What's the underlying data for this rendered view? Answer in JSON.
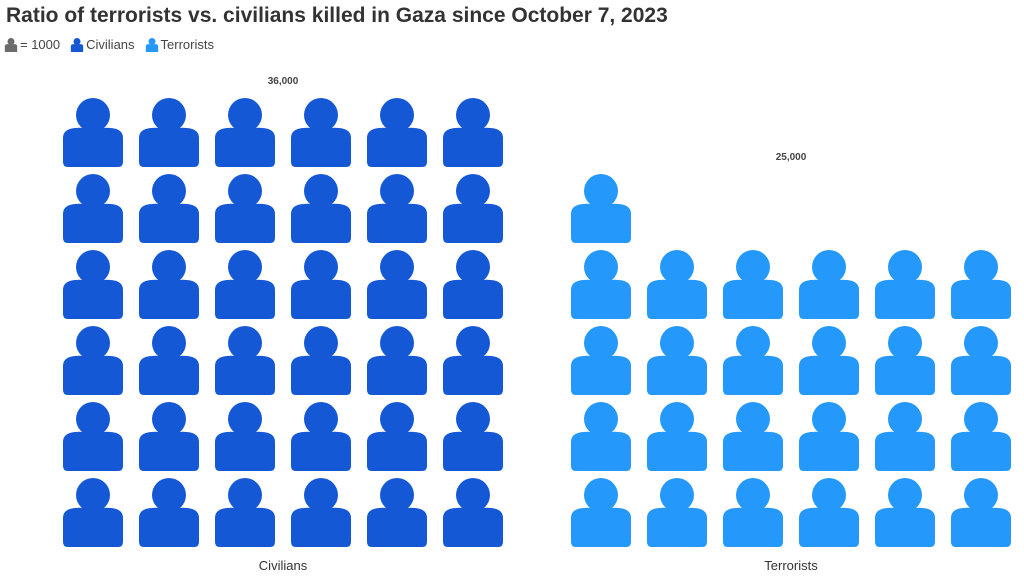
{
  "chart_data": {
    "type": "pictogram",
    "title": "Ratio of terrorists vs. civilians killed in Gaza since October 7, 2023",
    "unit_label": "= 1000",
    "unit_value": 1000,
    "categories": [
      "Civilians",
      "Terrorists"
    ],
    "values": [
      36000,
      25000
    ],
    "value_labels": [
      "36,000",
      "25,000"
    ],
    "colors": [
      "#1558d6",
      "#2499fb"
    ],
    "unit_icon_color": "#6b6b6b",
    "icons_per_row": 6,
    "legend": {
      "position": "top-left",
      "entries": [
        "Civilians",
        "Terrorists"
      ]
    }
  }
}
